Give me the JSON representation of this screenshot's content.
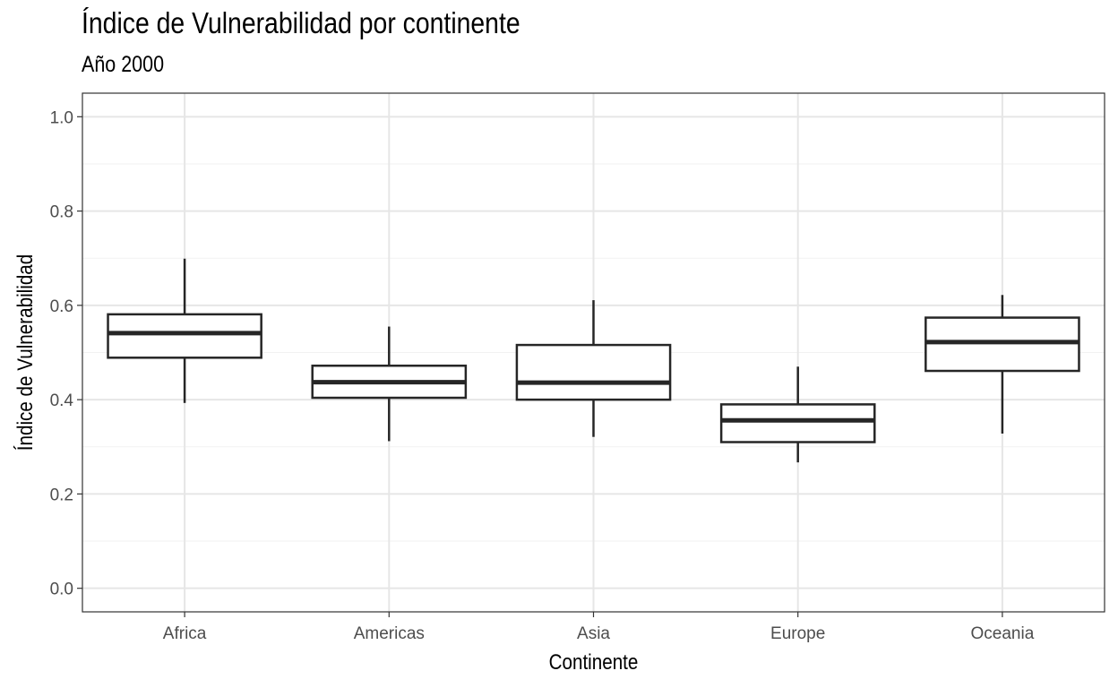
{
  "chart_data": {
    "type": "boxplot",
    "title": "Índice de Vulnerabilidad por continente",
    "subtitle": "Año 2000",
    "xlabel": "Continente",
    "ylabel": "Índice de Vulnerabilidad",
    "ylim": [
      -0.05,
      1.05
    ],
    "yticks": [
      "0.0",
      "0.2",
      "0.4",
      "0.6",
      "0.8",
      "1.0"
    ],
    "ytick_values": [
      0.0,
      0.2,
      0.4,
      0.6,
      0.8,
      1.0
    ],
    "grid": true,
    "categories": [
      "Africa",
      "Americas",
      "Asia",
      "Europe",
      "Oceania"
    ],
    "boxes": [
      {
        "category": "Africa",
        "min": 0.393,
        "q1": 0.489,
        "median": 0.541,
        "q3": 0.581,
        "max": 0.699
      },
      {
        "category": "Americas",
        "min": 0.312,
        "q1": 0.404,
        "median": 0.437,
        "q3": 0.472,
        "max": 0.555
      },
      {
        "category": "Asia",
        "min": 0.321,
        "q1": 0.4,
        "median": 0.436,
        "q3": 0.516,
        "max": 0.611
      },
      {
        "category": "Europe",
        "min": 0.267,
        "q1": 0.31,
        "median": 0.356,
        "q3": 0.39,
        "max": 0.47
      },
      {
        "category": "Oceania",
        "min": 0.328,
        "q1": 0.461,
        "median": 0.522,
        "q3": 0.574,
        "max": 0.622
      }
    ],
    "colors": {
      "box_line": "#262626",
      "grid_major": "#e6e6e6",
      "grid_minor": "#f2f2f2",
      "panel_border": "#333333"
    }
  }
}
